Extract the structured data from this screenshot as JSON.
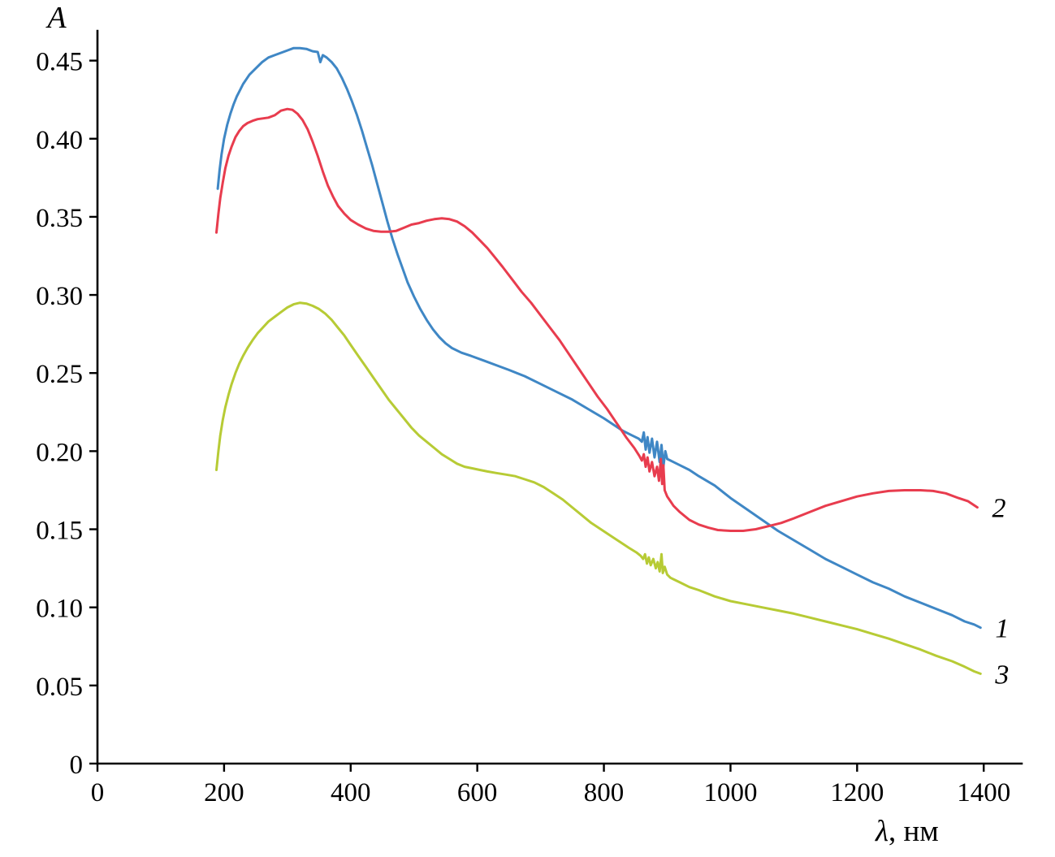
{
  "chart_data": {
    "type": "line",
    "title": "",
    "ylabel": "A",
    "xlabel_symbol": "λ",
    "xlabel_unit": ", нм",
    "xlim": [
      0,
      1460
    ],
    "ylim": [
      0,
      0.468
    ],
    "grid": false,
    "legend": "numeric labels at right end of each curve",
    "x_ticks": [
      0,
      200,
      400,
      600,
      800,
      1000,
      1200,
      1400
    ],
    "x_tick_labels": [
      "0",
      "200",
      "400",
      "600",
      "800",
      "1000",
      "1200",
      "1400"
    ],
    "y_ticks": [
      0,
      0.05,
      0.1,
      0.15,
      0.2,
      0.25,
      0.3,
      0.35,
      0.4,
      0.45
    ],
    "y_tick_labels": [
      "0",
      "0.05",
      "0.10",
      "0.15",
      "0.20",
      "0.25",
      "0.30",
      "0.35",
      "0.40",
      "0.45"
    ],
    "series": [
      {
        "name": "curve-1-blue",
        "label": "1",
        "color": "#3f87c5",
        "points": [
          [
            190,
            0.368
          ],
          [
            193,
            0.38
          ],
          [
            196,
            0.39
          ],
          [
            200,
            0.4
          ],
          [
            205,
            0.409
          ],
          [
            210,
            0.416
          ],
          [
            215,
            0.422
          ],
          [
            220,
            0.427
          ],
          [
            225,
            0.431
          ],
          [
            230,
            0.435
          ],
          [
            240,
            0.441
          ],
          [
            250,
            0.445
          ],
          [
            260,
            0.449
          ],
          [
            270,
            0.452
          ],
          [
            280,
            0.4535
          ],
          [
            290,
            0.455
          ],
          [
            300,
            0.4565
          ],
          [
            310,
            0.458
          ],
          [
            320,
            0.458
          ],
          [
            330,
            0.4575
          ],
          [
            340,
            0.456
          ],
          [
            348,
            0.4555
          ],
          [
            352,
            0.449
          ],
          [
            356,
            0.4535
          ],
          [
            362,
            0.452
          ],
          [
            370,
            0.449
          ],
          [
            378,
            0.445
          ],
          [
            386,
            0.439
          ],
          [
            394,
            0.432
          ],
          [
            402,
            0.424
          ],
          [
            410,
            0.415
          ],
          [
            418,
            0.405
          ],
          [
            426,
            0.394
          ],
          [
            434,
            0.383
          ],
          [
            442,
            0.371
          ],
          [
            450,
            0.359
          ],
          [
            458,
            0.347
          ],
          [
            466,
            0.336
          ],
          [
            474,
            0.326
          ],
          [
            482,
            0.317
          ],
          [
            490,
            0.308
          ],
          [
            500,
            0.299
          ],
          [
            510,
            0.291
          ],
          [
            520,
            0.284
          ],
          [
            530,
            0.278
          ],
          [
            540,
            0.273
          ],
          [
            550,
            0.269
          ],
          [
            560,
            0.266
          ],
          [
            575,
            0.263
          ],
          [
            590,
            0.261
          ],
          [
            610,
            0.258
          ],
          [
            630,
            0.255
          ],
          [
            650,
            0.252
          ],
          [
            675,
            0.248
          ],
          [
            700,
            0.243
          ],
          [
            725,
            0.238
          ],
          [
            750,
            0.233
          ],
          [
            775,
            0.227
          ],
          [
            800,
            0.221
          ],
          [
            815,
            0.217
          ],
          [
            830,
            0.213
          ],
          [
            845,
            0.21
          ],
          [
            855,
            0.208
          ],
          [
            860,
            0.206
          ],
          [
            863,
            0.212
          ],
          [
            866,
            0.201
          ],
          [
            869,
            0.209
          ],
          [
            872,
            0.199
          ],
          [
            876,
            0.208
          ],
          [
            880,
            0.196
          ],
          [
            884,
            0.206
          ],
          [
            888,
            0.193
          ],
          [
            891,
            0.204
          ],
          [
            894,
            0.19
          ],
          [
            897,
            0.2
          ],
          [
            900,
            0.195
          ],
          [
            905,
            0.194
          ],
          [
            910,
            0.193
          ],
          [
            920,
            0.191
          ],
          [
            935,
            0.188
          ],
          [
            950,
            0.184
          ],
          [
            975,
            0.178
          ],
          [
            1000,
            0.17
          ],
          [
            1025,
            0.163
          ],
          [
            1050,
            0.156
          ],
          [
            1075,
            0.149
          ],
          [
            1100,
            0.143
          ],
          [
            1125,
            0.137
          ],
          [
            1150,
            0.131
          ],
          [
            1175,
            0.126
          ],
          [
            1200,
            0.121
          ],
          [
            1225,
            0.116
          ],
          [
            1250,
            0.112
          ],
          [
            1275,
            0.107
          ],
          [
            1300,
            0.103
          ],
          [
            1325,
            0.099
          ],
          [
            1350,
            0.095
          ],
          [
            1370,
            0.091
          ],
          [
            1385,
            0.089
          ],
          [
            1395,
            0.087
          ]
        ]
      },
      {
        "name": "curve-2-red",
        "label": "2",
        "color": "#e83c4e",
        "points": [
          [
            188,
            0.34
          ],
          [
            191,
            0.352
          ],
          [
            194,
            0.362
          ],
          [
            198,
            0.372
          ],
          [
            202,
            0.381
          ],
          [
            207,
            0.389
          ],
          [
            212,
            0.395
          ],
          [
            218,
            0.401
          ],
          [
            224,
            0.405
          ],
          [
            230,
            0.408
          ],
          [
            237,
            0.41
          ],
          [
            245,
            0.4115
          ],
          [
            253,
            0.4125
          ],
          [
            261,
            0.413
          ],
          [
            270,
            0.4135
          ],
          [
            280,
            0.415
          ],
          [
            290,
            0.418
          ],
          [
            300,
            0.419
          ],
          [
            308,
            0.4185
          ],
          [
            316,
            0.416
          ],
          [
            324,
            0.412
          ],
          [
            332,
            0.406
          ],
          [
            340,
            0.398
          ],
          [
            348,
            0.389
          ],
          [
            356,
            0.379
          ],
          [
            364,
            0.37
          ],
          [
            372,
            0.363
          ],
          [
            380,
            0.357
          ],
          [
            390,
            0.352
          ],
          [
            400,
            0.348
          ],
          [
            412,
            0.345
          ],
          [
            424,
            0.3425
          ],
          [
            436,
            0.341
          ],
          [
            448,
            0.3405
          ],
          [
            460,
            0.3405
          ],
          [
            472,
            0.341
          ],
          [
            484,
            0.343
          ],
          [
            496,
            0.345
          ],
          [
            508,
            0.346
          ],
          [
            520,
            0.3475
          ],
          [
            532,
            0.3485
          ],
          [
            544,
            0.349
          ],
          [
            556,
            0.3485
          ],
          [
            568,
            0.347
          ],
          [
            580,
            0.344
          ],
          [
            592,
            0.34
          ],
          [
            604,
            0.335
          ],
          [
            616,
            0.33
          ],
          [
            628,
            0.324
          ],
          [
            640,
            0.318
          ],
          [
            655,
            0.31
          ],
          [
            670,
            0.302
          ],
          [
            685,
            0.295
          ],
          [
            700,
            0.287
          ],
          [
            715,
            0.279
          ],
          [
            730,
            0.271
          ],
          [
            745,
            0.262
          ],
          [
            760,
            0.253
          ],
          [
            775,
            0.244
          ],
          [
            790,
            0.235
          ],
          [
            805,
            0.227
          ],
          [
            820,
            0.218
          ],
          [
            835,
            0.209
          ],
          [
            848,
            0.202
          ],
          [
            856,
            0.197
          ],
          [
            860,
            0.194
          ],
          [
            863,
            0.198
          ],
          [
            866,
            0.19
          ],
          [
            869,
            0.196
          ],
          [
            872,
            0.187
          ],
          [
            876,
            0.193
          ],
          [
            880,
            0.184
          ],
          [
            884,
            0.19
          ],
          [
            887,
            0.181
          ],
          [
            890,
            0.195
          ],
          [
            892,
            0.179
          ],
          [
            894,
            0.191
          ],
          [
            896,
            0.175
          ],
          [
            900,
            0.171
          ],
          [
            905,
            0.168
          ],
          [
            910,
            0.165
          ],
          [
            920,
            0.161
          ],
          [
            935,
            0.156
          ],
          [
            950,
            0.153
          ],
          [
            965,
            0.151
          ],
          [
            980,
            0.1495
          ],
          [
            1000,
            0.149
          ],
          [
            1020,
            0.149
          ],
          [
            1040,
            0.15
          ],
          [
            1060,
            0.152
          ],
          [
            1080,
            0.154
          ],
          [
            1100,
            0.157
          ],
          [
            1125,
            0.161
          ],
          [
            1150,
            0.165
          ],
          [
            1175,
            0.168
          ],
          [
            1200,
            0.171
          ],
          [
            1225,
            0.173
          ],
          [
            1250,
            0.1745
          ],
          [
            1275,
            0.175
          ],
          [
            1300,
            0.175
          ],
          [
            1320,
            0.1745
          ],
          [
            1340,
            0.173
          ],
          [
            1360,
            0.17
          ],
          [
            1375,
            0.168
          ],
          [
            1390,
            0.164
          ]
        ]
      },
      {
        "name": "curve-3-green",
        "label": "3",
        "color": "#b7cb35",
        "points": [
          [
            188,
            0.188
          ],
          [
            191,
            0.2
          ],
          [
            194,
            0.21
          ],
          [
            198,
            0.22
          ],
          [
            202,
            0.228
          ],
          [
            207,
            0.236
          ],
          [
            212,
            0.243
          ],
          [
            218,
            0.25
          ],
          [
            224,
            0.256
          ],
          [
            230,
            0.261
          ],
          [
            237,
            0.266
          ],
          [
            245,
            0.271
          ],
          [
            253,
            0.2755
          ],
          [
            261,
            0.279
          ],
          [
            270,
            0.283
          ],
          [
            280,
            0.286
          ],
          [
            290,
            0.289
          ],
          [
            300,
            0.292
          ],
          [
            310,
            0.294
          ],
          [
            320,
            0.295
          ],
          [
            330,
            0.2945
          ],
          [
            340,
            0.293
          ],
          [
            350,
            0.291
          ],
          [
            360,
            0.288
          ],
          [
            370,
            0.284
          ],
          [
            380,
            0.279
          ],
          [
            390,
            0.274
          ],
          [
            400,
            0.268
          ],
          [
            412,
            0.261
          ],
          [
            424,
            0.254
          ],
          [
            436,
            0.247
          ],
          [
            448,
            0.24
          ],
          [
            460,
            0.233
          ],
          [
            472,
            0.227
          ],
          [
            484,
            0.221
          ],
          [
            496,
            0.215
          ],
          [
            508,
            0.21
          ],
          [
            520,
            0.206
          ],
          [
            532,
            0.202
          ],
          [
            544,
            0.198
          ],
          [
            556,
            0.195
          ],
          [
            568,
            0.192
          ],
          [
            580,
            0.19
          ],
          [
            592,
            0.189
          ],
          [
            604,
            0.188
          ],
          [
            616,
            0.187
          ],
          [
            630,
            0.186
          ],
          [
            645,
            0.185
          ],
          [
            660,
            0.184
          ],
          [
            675,
            0.182
          ],
          [
            690,
            0.18
          ],
          [
            705,
            0.177
          ],
          [
            720,
            0.173
          ],
          [
            735,
            0.169
          ],
          [
            750,
            0.164
          ],
          [
            765,
            0.159
          ],
          [
            780,
            0.154
          ],
          [
            795,
            0.15
          ],
          [
            810,
            0.146
          ],
          [
            825,
            0.142
          ],
          [
            840,
            0.138
          ],
          [
            852,
            0.135
          ],
          [
            858,
            0.133
          ],
          [
            862,
            0.131
          ],
          [
            865,
            0.134
          ],
          [
            868,
            0.128
          ],
          [
            871,
            0.132
          ],
          [
            874,
            0.127
          ],
          [
            878,
            0.131
          ],
          [
            882,
            0.125
          ],
          [
            885,
            0.129
          ],
          [
            888,
            0.123
          ],
          [
            891,
            0.134
          ],
          [
            893,
            0.122
          ],
          [
            896,
            0.126
          ],
          [
            900,
            0.121
          ],
          [
            905,
            0.119
          ],
          [
            910,
            0.118
          ],
          [
            920,
            0.116
          ],
          [
            935,
            0.113
          ],
          [
            950,
            0.111
          ],
          [
            975,
            0.107
          ],
          [
            1000,
            0.104
          ],
          [
            1025,
            0.102
          ],
          [
            1050,
            0.1
          ],
          [
            1075,
            0.098
          ],
          [
            1100,
            0.096
          ],
          [
            1125,
            0.0935
          ],
          [
            1150,
            0.091
          ],
          [
            1175,
            0.0885
          ],
          [
            1200,
            0.086
          ],
          [
            1225,
            0.083
          ],
          [
            1250,
            0.08
          ],
          [
            1275,
            0.0765
          ],
          [
            1300,
            0.073
          ],
          [
            1325,
            0.069
          ],
          [
            1350,
            0.0655
          ],
          [
            1370,
            0.062
          ],
          [
            1385,
            0.059
          ],
          [
            1395,
            0.0575
          ]
        ]
      }
    ]
  }
}
